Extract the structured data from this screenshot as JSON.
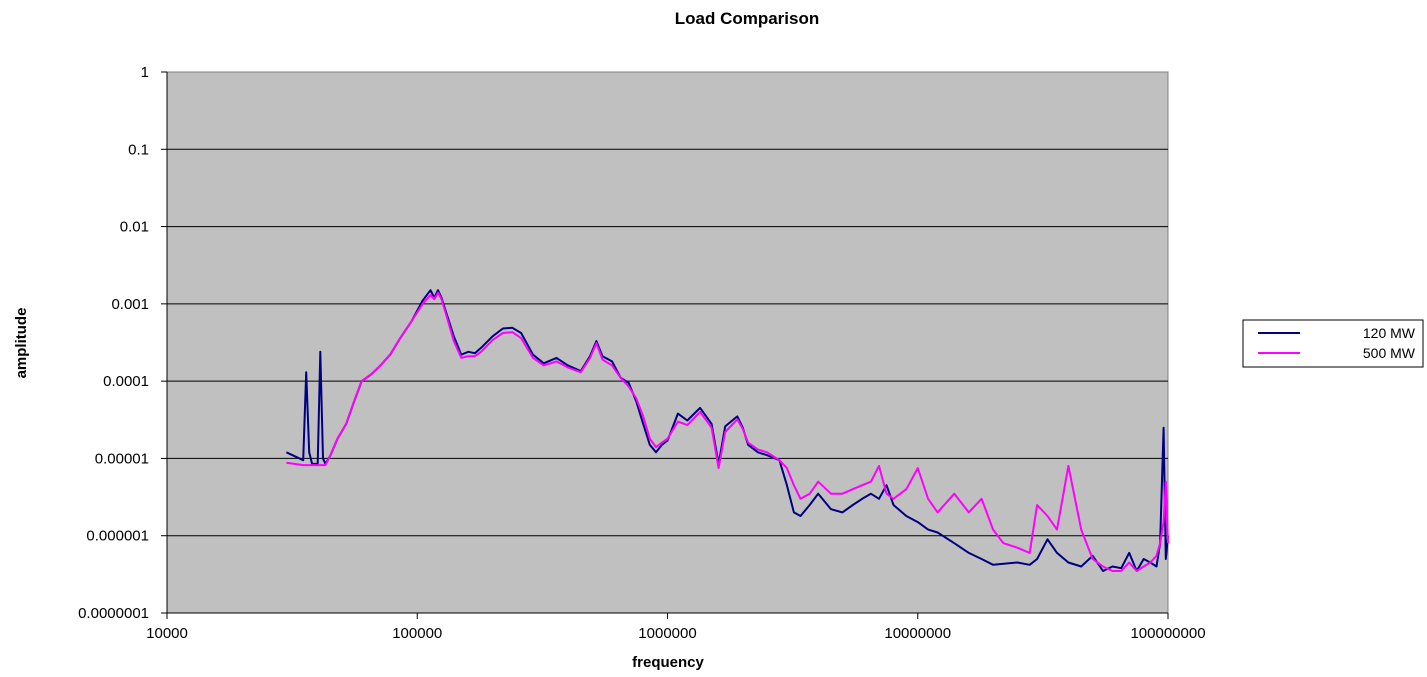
{
  "chart_data": {
    "type": "line",
    "title": "Load Comparison",
    "xlabel": "frequency",
    "ylabel": "amplitude",
    "x_scale": "log",
    "y_scale": "log",
    "xlim": [
      10000,
      100000000
    ],
    "ylim": [
      1e-07,
      1
    ],
    "x_ticks": [
      "10000",
      "100000",
      "1000000",
      "10000000",
      "100000000"
    ],
    "y_ticks": [
      "1",
      "0.1",
      "0.01",
      "0.001",
      "0.0001",
      "0.00001",
      "0.000001",
      "0.0000001"
    ],
    "grid": "horizontal major",
    "plot_background": "#C0C0C0",
    "legend_position": "right",
    "series": [
      {
        "name": "120 MW",
        "color": "#000080",
        "x": [
          30000,
          35000,
          36000,
          37000,
          38000,
          40000,
          41000,
          42000,
          43000,
          45000,
          48000,
          52000,
          56000,
          60000,
          65000,
          70000,
          78000,
          85000,
          95000,
          105000,
          113000,
          117000,
          121000,
          125000,
          130000,
          140000,
          150000,
          160000,
          170000,
          180000,
          200000,
          220000,
          240000,
          260000,
          290000,
          320000,
          360000,
          400000,
          450000,
          490000,
          520000,
          550000,
          600000,
          650000,
          700000,
          750000,
          800000,
          850000,
          900000,
          950000,
          1000000,
          1100000,
          1200000,
          1350000,
          1500000,
          1600000,
          1700000,
          1900000,
          2000000,
          2100000,
          2300000,
          2500000,
          2800000,
          3000000,
          3200000,
          3400000,
          3700000,
          4000000,
          4500000,
          5000000,
          5500000,
          6000000,
          6500000,
          7000000,
          7500000,
          8000000,
          9000000,
          10000000,
          11000000,
          12000000,
          14000000,
          16000000,
          18000000,
          20000000,
          25000000,
          28000000,
          30000000,
          33000000,
          36000000,
          40000000,
          45000000,
          50000000,
          55000000,
          60000000,
          65000000,
          70000000,
          75000000,
          80000000,
          85000000,
          90000000,
          93000000,
          96000000,
          98000000,
          100000000
        ],
        "y": [
          1.2e-05,
          9.5e-06,
          0.00013,
          1.2e-05,
          8.5e-06,
          8.5e-06,
          0.00024,
          1e-05,
          8.5e-06,
          1.1e-05,
          1.8e-05,
          2.8e-05,
          5.5e-05,
          0.0001,
          0.00012,
          0.00015,
          0.00022,
          0.00035,
          0.0006,
          0.0011,
          0.0015,
          0.0012,
          0.0015,
          0.0012,
          0.0008,
          0.00038,
          0.00022,
          0.00024,
          0.00023,
          0.00027,
          0.00038,
          0.00048,
          0.00049,
          0.00042,
          0.00022,
          0.00017,
          0.0002,
          0.00016,
          0.000135,
          0.00021,
          0.00033,
          0.00021,
          0.00018,
          0.00011,
          9.5e-05,
          5.5e-05,
          2.8e-05,
          1.5e-05,
          1.2e-05,
          1.5e-05,
          1.7e-05,
          3.8e-05,
          3.1e-05,
          4.5e-05,
          2.8e-05,
          8.5e-06,
          2.6e-05,
          3.5e-05,
          2.5e-05,
          1.5e-05,
          1.2e-05,
          1.1e-05,
          9.5e-06,
          4.5e-06,
          2e-06,
          1.8e-06,
          2.5e-06,
          3.5e-06,
          2.2e-06,
          2e-06,
          2.5e-06,
          3e-06,
          3.5e-06,
          3e-06,
          4.5e-06,
          2.5e-06,
          1.8e-06,
          1.5e-06,
          1.2e-06,
          1.1e-06,
          8e-07,
          6e-07,
          5e-07,
          4.2e-07,
          4.5e-07,
          4.2e-07,
          5e-07,
          9e-07,
          6e-07,
          4.5e-07,
          4e-07,
          5.5e-07,
          3.5e-07,
          4e-07,
          3.8e-07,
          6e-07,
          3.5e-07,
          5e-07,
          4.5e-07,
          4e-07,
          8e-07,
          2.5e-05,
          5e-07,
          1e-06
        ]
      },
      {
        "name": "500 MW",
        "color": "#FF00FF",
        "x": [
          30000,
          35000,
          40000,
          43000,
          45000,
          48000,
          52000,
          56000,
          60000,
          65000,
          70000,
          78000,
          85000,
          95000,
          105000,
          113000,
          117000,
          121000,
          125000,
          130000,
          140000,
          150000,
          160000,
          170000,
          180000,
          200000,
          220000,
          240000,
          260000,
          290000,
          320000,
          360000,
          400000,
          450000,
          490000,
          520000,
          550000,
          600000,
          650000,
          700000,
          750000,
          800000,
          850000,
          900000,
          950000,
          1000000,
          1100000,
          1200000,
          1350000,
          1500000,
          1600000,
          1700000,
          1900000,
          2000000,
          2100000,
          2300000,
          2500000,
          2800000,
          3000000,
          3200000,
          3400000,
          3700000,
          4000000,
          4500000,
          5000000,
          5500000,
          6000000,
          6500000,
          7000000,
          7500000,
          8000000,
          9000000,
          10000000,
          11000000,
          12000000,
          14000000,
          16000000,
          18000000,
          20000000,
          22000000,
          25000000,
          28000000,
          30000000,
          33000000,
          36000000,
          40000000,
          45000000,
          50000000,
          55000000,
          60000000,
          65000000,
          70000000,
          75000000,
          80000000,
          85000000,
          90000000,
          93000000,
          96000000,
          98000000,
          100000000
        ],
        "y": [
          8.8e-06,
          8.2e-06,
          8.2e-06,
          8.2e-06,
          1.1e-05,
          1.8e-05,
          2.8e-05,
          5.5e-05,
          0.0001,
          0.00012,
          0.00015,
          0.00022,
          0.00035,
          0.0006,
          0.001,
          0.0013,
          0.00115,
          0.0014,
          0.00115,
          0.00075,
          0.00033,
          0.0002,
          0.00021,
          0.00021,
          0.00024,
          0.00034,
          0.00042,
          0.00043,
          0.00036,
          0.0002,
          0.00016,
          0.00018,
          0.00015,
          0.00013,
          0.0002,
          0.00031,
          0.00019,
          0.00016,
          0.00011,
          8.5e-05,
          6e-05,
          3.5e-05,
          1.8e-05,
          1.4e-05,
          1.6e-05,
          1.8e-05,
          3e-05,
          2.7e-05,
          4e-05,
          2.5e-05,
          7.5e-06,
          2.2e-05,
          3.2e-05,
          2.4e-05,
          1.6e-05,
          1.3e-05,
          1.2e-05,
          9.5e-06,
          7.5e-06,
          4.5e-06,
          3e-06,
          3.5e-06,
          5e-06,
          3.5e-06,
          3.5e-06,
          4e-06,
          4.5e-06,
          5e-06,
          8e-06,
          3.5e-06,
          3e-06,
          4e-06,
          7.5e-06,
          3e-06,
          2e-06,
          3.5e-06,
          2e-06,
          3e-06,
          1.2e-06,
          8e-07,
          7e-07,
          6e-07,
          2.5e-06,
          1.8e-06,
          1.2e-06,
          8e-06,
          1.2e-06,
          5e-07,
          4e-07,
          3.5e-07,
          3.5e-07,
          4.5e-07,
          3.5e-07,
          4e-07,
          4.5e-07,
          5.5e-07,
          8e-07,
          1.5e-06,
          5e-06,
          8e-07
        ]
      }
    ]
  }
}
